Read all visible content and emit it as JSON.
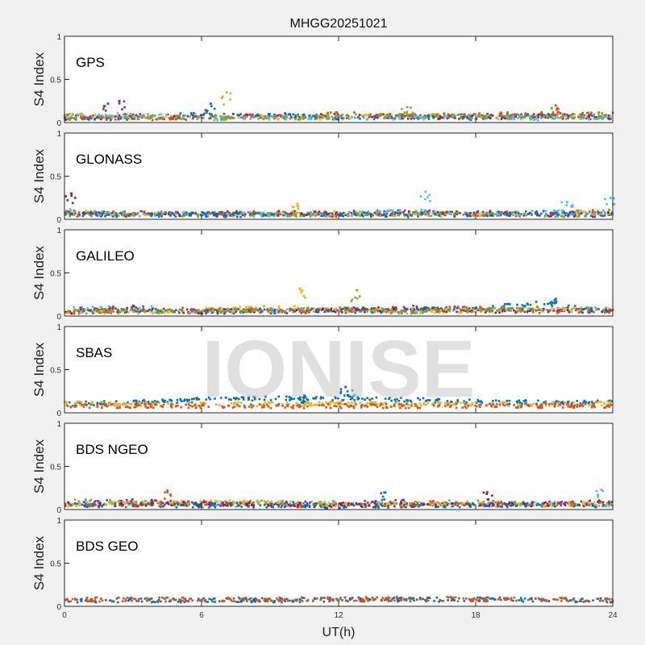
{
  "chart_data": {
    "type": "scatter",
    "title": "MHGG20251021",
    "xlabel": "UT(h)",
    "ylabel": "S4 Index",
    "xlim": [
      0,
      24
    ],
    "ylim": [
      0,
      1
    ],
    "xticks": [
      "0",
      "6",
      "12",
      "18",
      "24"
    ],
    "yticks": [
      "0",
      "0.5",
      "1"
    ],
    "watermark": "IONISE",
    "level_times_h": [
      0,
      3,
      6,
      9,
      12,
      15,
      18,
      21,
      24
    ],
    "panels": [
      {
        "name": "GPS",
        "series": [
          {
            "color": "#7E2F8E",
            "levels": [
              0.06,
              0.08,
              0.06,
              0.08,
              0.07,
              0.06,
              0.08,
              0.07,
              0.06
            ]
          },
          {
            "color": "#A2142F",
            "levels": [
              0.05,
              0.07,
              0.07,
              0.09,
              0.08,
              0.07,
              0.06,
              0.08,
              0.07
            ]
          },
          {
            "color": "#EDB120",
            "levels": [
              0.09,
              0.06,
              0.08,
              0.06,
              0.06,
              0.09,
              0.07,
              0.06,
              0.08
            ]
          },
          {
            "color": "#0072BD",
            "levels": [
              0.05,
              0.05,
              0.1,
              0.08,
              0.06,
              0.07,
              0.05,
              0.09,
              0.06
            ]
          },
          {
            "color": "#D95319",
            "levels": [
              0.07,
              0.05,
              0.06,
              0.07,
              0.1,
              0.08,
              0.09,
              0.1,
              0.09
            ]
          },
          {
            "color": "#4DBEEE",
            "levels": [
              0.08,
              0.09,
              0.05,
              0.06,
              0.06,
              0.05,
              0.07,
              0.05,
              0.05
            ]
          },
          {
            "color": "#77AC30",
            "levels": [
              0.06,
              0.07,
              0.06,
              0.05,
              0.07,
              0.08,
              0.07,
              0.06,
              0.07
            ]
          }
        ],
        "peaks": [
          [
            1.9,
            0.22,
            "#7E2F8E"
          ],
          [
            2.4,
            0.25,
            "#7E2F8E"
          ],
          [
            7.1,
            0.35,
            "#EDB120"
          ],
          [
            6.4,
            0.22,
            "#0072BD"
          ],
          [
            15,
            0.18,
            "#77AC30"
          ],
          [
            21.5,
            0.2,
            "#D95319"
          ]
        ]
      },
      {
        "name": "GLONASS",
        "series": [
          {
            "color": "#A2142F",
            "levels": [
              0.07,
              0.05,
              0.06,
              0.08,
              0.06,
              0.07,
              0.08,
              0.06,
              0.07
            ]
          },
          {
            "color": "#EDB120",
            "levels": [
              0.09,
              0.06,
              0.05,
              0.06,
              0.08,
              0.05,
              0.06,
              0.07,
              0.09
            ]
          },
          {
            "color": "#D95319",
            "levels": [
              0.08,
              0.07,
              0.06,
              0.07,
              0.05,
              0.08,
              0.06,
              0.05,
              0.1
            ]
          },
          {
            "color": "#7E2F8E",
            "levels": [
              0.05,
              0.08,
              0.05,
              0.05,
              0.07,
              0.09,
              0.07,
              0.06,
              0.05
            ]
          },
          {
            "color": "#4DBEEE",
            "levels": [
              0.1,
              0.05,
              0.07,
              0.05,
              0.06,
              0.1,
              0.05,
              0.08,
              0.08
            ]
          },
          {
            "color": "#77AC30",
            "levels": [
              0.06,
              0.06,
              0.05,
              0.06,
              0.05,
              0.06,
              0.07,
              0.05,
              0.06
            ]
          },
          {
            "color": "#0072BD",
            "levels": [
              0.06,
              0.05,
              0.06,
              0.05,
              0.06,
              0.05,
              0.06,
              0.07,
              0.06
            ]
          }
        ],
        "peaks": [
          [
            0.3,
            0.3,
            "#A2142F"
          ],
          [
            15.8,
            0.32,
            "#4DBEEE"
          ],
          [
            22,
            0.2,
            "#4DBEEE"
          ],
          [
            23.9,
            0.25,
            "#4DBEEE"
          ],
          [
            10.2,
            0.18,
            "#EDB120"
          ]
        ]
      },
      {
        "name": "GALILEO",
        "series": [
          {
            "color": "#4DBEEE",
            "levels": [
              0.08,
              0.1,
              0.06,
              0.06,
              0.08,
              0.05,
              0.08,
              0.07,
              0.08
            ]
          },
          {
            "color": "#A2142F",
            "levels": [
              0.05,
              0.07,
              0.05,
              0.08,
              0.06,
              0.09,
              0.06,
              0.07,
              0.06
            ]
          },
          {
            "color": "#7E2F8E",
            "levels": [
              0.06,
              0.1,
              0.05,
              0.05,
              0.07,
              0.1,
              0.08,
              0.06,
              0.07
            ]
          },
          {
            "color": "#0072BD",
            "levels": [
              0.07,
              0.06,
              0.06,
              0.07,
              0.05,
              0.07,
              0.09,
              0.15,
              0.05
            ]
          },
          {
            "color": "#EDB120",
            "levels": [
              0.05,
              0.05,
              0.07,
              0.1,
              0.08,
              0.06,
              0.06,
              0.08,
              0.09
            ]
          },
          {
            "color": "#D95319",
            "levels": [
              0.06,
              0.06,
              0.08,
              0.06,
              0.06,
              0.06,
              0.1,
              0.05,
              0.06
            ]
          },
          {
            "color": "#77AC30",
            "levels": [
              0.05,
              0.06,
              0.05,
              0.07,
              0.09,
              0.05,
              0.07,
              0.09,
              0.08
            ]
          }
        ],
        "peaks": [
          [
            10.3,
            0.32,
            "#EDB120"
          ],
          [
            12.8,
            0.3,
            "#77AC30"
          ],
          [
            21.5,
            0.2,
            "#0072BD"
          ]
        ]
      },
      {
        "name": "SBAS",
        "series": [
          {
            "color": "#0072BD",
            "levels": [
              0.1,
              0.12,
              0.15,
              0.17,
              0.17,
              0.15,
              0.13,
              0.12,
              0.12
            ]
          },
          {
            "color": "#EDB120",
            "levels": [
              0.11,
              0.1,
              0.1,
              0.1,
              0.11,
              0.1,
              0.1,
              0.1,
              0.11
            ]
          },
          {
            "color": "#D95319",
            "levels": [
              0.08,
              0.08,
              0.08,
              0.08,
              0.08,
              0.08,
              0.08,
              0.08,
              0.08
            ]
          }
        ],
        "peaks": [
          [
            12.3,
            0.3,
            "#0072BD"
          ],
          [
            12.6,
            0.26,
            "#0072BD"
          ],
          [
            10.5,
            0.2,
            "#0072BD"
          ]
        ]
      },
      {
        "name": "BDS NGEO",
        "series": [
          {
            "color": "#4DBEEE",
            "levels": [
              0.08,
              0.07,
              0.05,
              0.06,
              0.08,
              0.05,
              0.06,
              0.08,
              0.05
            ]
          },
          {
            "color": "#77AC30",
            "levels": [
              0.1,
              0.08,
              0.07,
              0.09,
              0.06,
              0.07,
              0.09,
              0.05,
              0.06
            ]
          },
          {
            "color": "#7E2F8E",
            "levels": [
              0.06,
              0.1,
              0.06,
              0.07,
              0.07,
              0.09,
              0.05,
              0.07,
              0.07
            ]
          },
          {
            "color": "#D95319",
            "levels": [
              0.05,
              0.06,
              0.08,
              0.05,
              0.05,
              0.06,
              0.07,
              0.06,
              0.06
            ]
          },
          {
            "color": "#A2142F",
            "levels": [
              0.07,
              0.05,
              0.07,
              0.06,
              0.05,
              0.05,
              0.06,
              0.06,
              0.09
            ]
          },
          {
            "color": "#EDB120",
            "levels": [
              0.06,
              0.07,
              0.09,
              0.08,
              0.06,
              0.07,
              0.06,
              0.05,
              0.07
            ]
          },
          {
            "color": "#0072BD",
            "levels": [
              0.05,
              0.05,
              0.05,
              0.05,
              0.04,
              0.05,
              0.05,
              0.05,
              0.05
            ]
          }
        ],
        "peaks": [
          [
            4.5,
            0.22,
            "#D95319"
          ],
          [
            23.5,
            0.23,
            "#4DBEEE"
          ],
          [
            18.5,
            0.2,
            "#A2142F"
          ],
          [
            14,
            0.2,
            "#0072BD"
          ]
        ]
      },
      {
        "name": "BDS GEO",
        "series": [
          {
            "color": "#0072BD",
            "levels": [
              0.07,
              0.07,
              0.07,
              0.07,
              0.08,
              0.08,
              0.08,
              0.08,
              0.07
            ]
          },
          {
            "color": "#D95319",
            "levels": [
              0.08,
              0.08,
              0.08,
              0.08,
              0.08,
              0.09,
              0.08,
              0.08,
              0.08
            ]
          }
        ],
        "peaks": []
      }
    ]
  }
}
